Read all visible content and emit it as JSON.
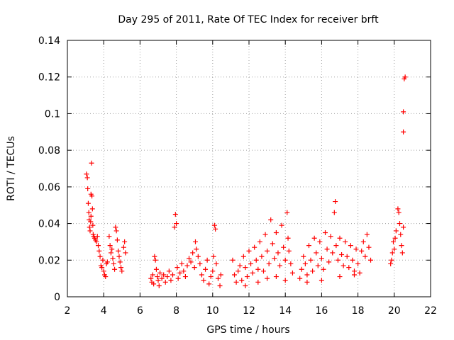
{
  "chart_data": {
    "type": "scatter",
    "title": "Day 295 of 2011, Rate Of TEC Index for receiver brft",
    "xlabel": "GPS time / hours",
    "ylabel": "ROTI / TECUs",
    "xlim": [
      2,
      22
    ],
    "ylim": [
      0,
      0.14
    ],
    "xticks": [
      2,
      4,
      6,
      8,
      10,
      12,
      14,
      16,
      18,
      20,
      22
    ],
    "xtick_labels": [
      "2",
      "4",
      "6",
      "8",
      "10",
      "12",
      "14",
      "16",
      "18",
      "20",
      "22"
    ],
    "yticks": [
      0,
      0.02,
      0.04,
      0.06,
      0.08,
      0.1,
      0.12,
      0.14
    ],
    "ytick_labels": [
      "0",
      "0.02",
      "0.04",
      "0.06",
      "0.08",
      "0.1",
      "0.12",
      "0.14"
    ],
    "grid": true,
    "marker": "+",
    "marker_color": "#ff0000",
    "series": [
      {
        "name": "ROTI",
        "points": [
          [
            3.05,
            0.067
          ],
          [
            3.1,
            0.065
          ],
          [
            3.12,
            0.059
          ],
          [
            3.15,
            0.051
          ],
          [
            3.18,
            0.046
          ],
          [
            3.2,
            0.042
          ],
          [
            3.22,
            0.038
          ],
          [
            3.25,
            0.036
          ],
          [
            3.28,
            0.041
          ],
          [
            3.3,
            0.044
          ],
          [
            3.3,
            0.056
          ],
          [
            3.33,
            0.073
          ],
          [
            3.35,
            0.055
          ],
          [
            3.38,
            0.048
          ],
          [
            3.4,
            0.039
          ],
          [
            3.42,
            0.034
          ],
          [
            3.45,
            0.033
          ],
          [
            3.5,
            0.032
          ],
          [
            3.55,
            0.031
          ],
          [
            3.6,
            0.03
          ],
          [
            3.65,
            0.033
          ],
          [
            3.7,
            0.028
          ],
          [
            3.75,
            0.025
          ],
          [
            3.8,
            0.022
          ],
          [
            3.85,
            0.017
          ],
          [
            3.9,
            0.016
          ],
          [
            3.95,
            0.02
          ],
          [
            4.0,
            0.014
          ],
          [
            4.05,
            0.012
          ],
          [
            4.1,
            0.011
          ],
          [
            4.15,
            0.018
          ],
          [
            4.2,
            0.019
          ],
          [
            4.3,
            0.033
          ],
          [
            4.35,
            0.028
          ],
          [
            4.4,
            0.024
          ],
          [
            4.45,
            0.026
          ],
          [
            4.5,
            0.021
          ],
          [
            4.55,
            0.018
          ],
          [
            4.6,
            0.015
          ],
          [
            4.65,
            0.038
          ],
          [
            4.7,
            0.036
          ],
          [
            4.75,
            0.031
          ],
          [
            4.8,
            0.025
          ],
          [
            4.85,
            0.022
          ],
          [
            4.9,
            0.019
          ],
          [
            4.95,
            0.016
          ],
          [
            5.0,
            0.014
          ],
          [
            5.1,
            0.027
          ],
          [
            5.15,
            0.03
          ],
          [
            5.2,
            0.024
          ],
          [
            6.6,
            0.01
          ],
          [
            6.65,
            0.008
          ],
          [
            6.7,
            0.012
          ],
          [
            6.75,
            0.007
          ],
          [
            6.8,
            0.022
          ],
          [
            6.85,
            0.02
          ],
          [
            6.9,
            0.015
          ],
          [
            6.95,
            0.011
          ],
          [
            7.0,
            0.009
          ],
          [
            7.05,
            0.006
          ],
          [
            7.1,
            0.013
          ],
          [
            7.2,
            0.01
          ],
          [
            7.3,
            0.012
          ],
          [
            7.4,
            0.008
          ],
          [
            7.5,
            0.011
          ],
          [
            7.6,
            0.014
          ],
          [
            7.7,
            0.009
          ],
          [
            7.8,
            0.012
          ],
          [
            7.9,
            0.038
          ],
          [
            7.95,
            0.045
          ],
          [
            8.0,
            0.04
          ],
          [
            8.05,
            0.016
          ],
          [
            8.1,
            0.01
          ],
          [
            8.2,
            0.013
          ],
          [
            8.3,
            0.018
          ],
          [
            8.4,
            0.014
          ],
          [
            8.5,
            0.011
          ],
          [
            8.6,
            0.017
          ],
          [
            8.7,
            0.021
          ],
          [
            8.8,
            0.019
          ],
          [
            8.9,
            0.024
          ],
          [
            9.0,
            0.016
          ],
          [
            9.05,
            0.03
          ],
          [
            9.1,
            0.026
          ],
          [
            9.2,
            0.022
          ],
          [
            9.3,
            0.018
          ],
          [
            9.4,
            0.012
          ],
          [
            9.5,
            0.009
          ],
          [
            9.6,
            0.015
          ],
          [
            9.7,
            0.02
          ],
          [
            9.8,
            0.007
          ],
          [
            9.9,
            0.011
          ],
          [
            10.0,
            0.014
          ],
          [
            10.05,
            0.022
          ],
          [
            10.1,
            0.039
          ],
          [
            10.15,
            0.037
          ],
          [
            10.2,
            0.018
          ],
          [
            10.3,
            0.01
          ],
          [
            10.4,
            0.006
          ],
          [
            10.45,
            0.012
          ],
          [
            11.1,
            0.02
          ],
          [
            11.2,
            0.012
          ],
          [
            11.3,
            0.008
          ],
          [
            11.4,
            0.014
          ],
          [
            11.5,
            0.017
          ],
          [
            11.6,
            0.009
          ],
          [
            11.7,
            0.022
          ],
          [
            11.8,
            0.016
          ],
          [
            11.9,
            0.011
          ],
          [
            12.0,
            0.025
          ],
          [
            12.1,
            0.018
          ],
          [
            12.2,
            0.013
          ],
          [
            12.3,
            0.027
          ],
          [
            12.4,
            0.02
          ],
          [
            12.5,
            0.015
          ],
          [
            12.6,
            0.03
          ],
          [
            12.7,
            0.022
          ],
          [
            12.8,
            0.014
          ],
          [
            12.9,
            0.034
          ],
          [
            13.0,
            0.025
          ],
          [
            13.1,
            0.018
          ],
          [
            13.2,
            0.042
          ],
          [
            13.3,
            0.029
          ],
          [
            13.4,
            0.021
          ],
          [
            13.5,
            0.035
          ],
          [
            13.6,
            0.024
          ],
          [
            13.7,
            0.017
          ],
          [
            13.8,
            0.039
          ],
          [
            13.9,
            0.027
          ],
          [
            14.0,
            0.02
          ],
          [
            14.1,
            0.046
          ],
          [
            14.15,
            0.032
          ],
          [
            14.2,
            0.025
          ],
          [
            14.3,
            0.018
          ],
          [
            14.4,
            0.013
          ],
          [
            12.5,
            0.008
          ],
          [
            13.0,
            0.01
          ],
          [
            13.5,
            0.011
          ],
          [
            14.0,
            0.009
          ],
          [
            11.8,
            0.006
          ],
          [
            14.8,
            0.01
          ],
          [
            14.9,
            0.015
          ],
          [
            15.0,
            0.022
          ],
          [
            15.1,
            0.018
          ],
          [
            15.2,
            0.012
          ],
          [
            15.3,
            0.028
          ],
          [
            15.4,
            0.02
          ],
          [
            15.5,
            0.014
          ],
          [
            15.6,
            0.032
          ],
          [
            15.7,
            0.024
          ],
          [
            15.8,
            0.017
          ],
          [
            15.9,
            0.03
          ],
          [
            16.0,
            0.021
          ],
          [
            16.1,
            0.015
          ],
          [
            16.2,
            0.035
          ],
          [
            16.3,
            0.026
          ],
          [
            16.4,
            0.019
          ],
          [
            16.5,
            0.033
          ],
          [
            16.6,
            0.024
          ],
          [
            16.7,
            0.046
          ],
          [
            16.75,
            0.052
          ],
          [
            16.8,
            0.028
          ],
          [
            16.9,
            0.02
          ],
          [
            17.0,
            0.032
          ],
          [
            17.1,
            0.023
          ],
          [
            17.2,
            0.017
          ],
          [
            17.3,
            0.03
          ],
          [
            17.4,
            0.022
          ],
          [
            17.5,
            0.016
          ],
          [
            17.6,
            0.028
          ],
          [
            17.7,
            0.02
          ],
          [
            17.8,
            0.014
          ],
          [
            17.9,
            0.026
          ],
          [
            18.0,
            0.018
          ],
          [
            18.1,
            0.013
          ],
          [
            18.2,
            0.025
          ],
          [
            18.3,
            0.03
          ],
          [
            18.4,
            0.022
          ],
          [
            18.5,
            0.034
          ],
          [
            18.6,
            0.027
          ],
          [
            18.7,
            0.02
          ],
          [
            15.2,
            0.008
          ],
          [
            16.0,
            0.009
          ],
          [
            17.0,
            0.011
          ],
          [
            17.8,
            0.012
          ],
          [
            19.8,
            0.018
          ],
          [
            19.85,
            0.02
          ],
          [
            19.9,
            0.024
          ],
          [
            19.95,
            0.03
          ],
          [
            20.0,
            0.026
          ],
          [
            20.05,
            0.032
          ],
          [
            20.1,
            0.036
          ],
          [
            20.2,
            0.048
          ],
          [
            20.25,
            0.046
          ],
          [
            20.3,
            0.04
          ],
          [
            20.35,
            0.034
          ],
          [
            20.4,
            0.028
          ],
          [
            20.45,
            0.024
          ],
          [
            20.5,
            0.038
          ],
          [
            20.5,
            0.09
          ],
          [
            20.5,
            0.101
          ],
          [
            20.55,
            0.119
          ],
          [
            20.6,
            0.12
          ]
        ]
      }
    ]
  }
}
